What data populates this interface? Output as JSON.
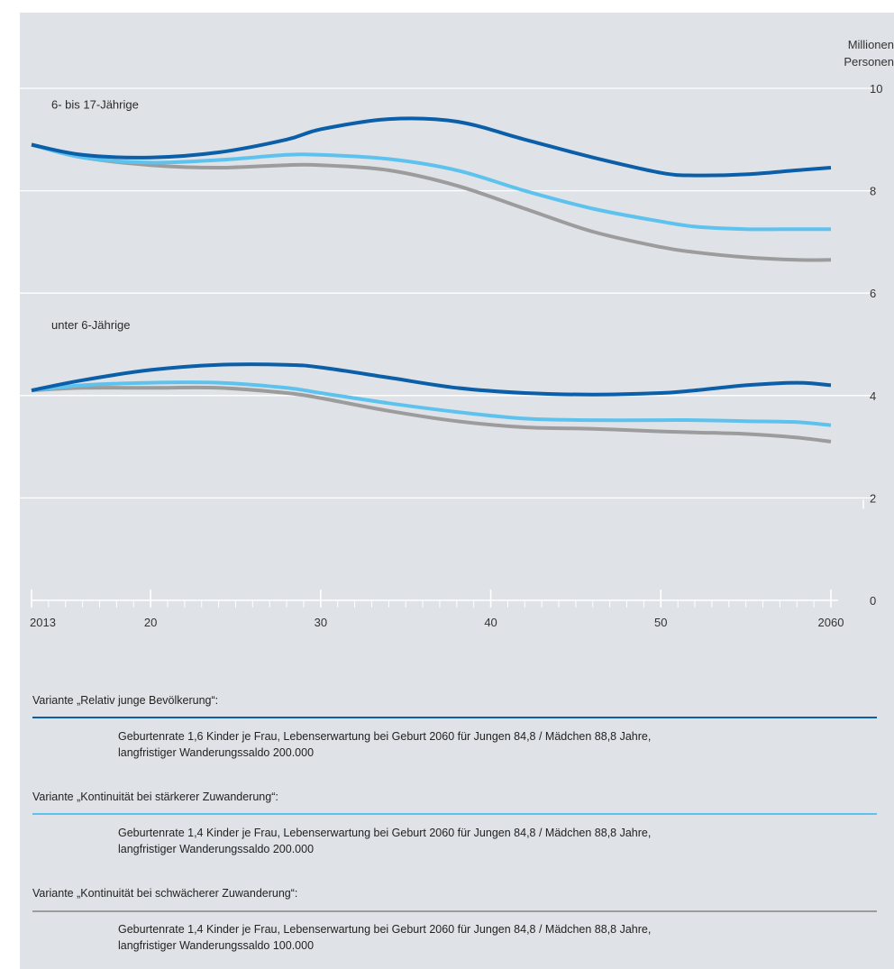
{
  "unit_label": [
    "Millionen",
    "Personen"
  ],
  "colors": {
    "variant_1": "#0b5ea8",
    "variant_2": "#5ec2ee",
    "variant_3": "#9c9c9c",
    "background": "#dfe3e7",
    "grid": "#ffffff"
  },
  "chart_data": {
    "type": "line",
    "xlim": [
      2013,
      2060
    ],
    "ylim": [
      0,
      10
    ],
    "y_ticks": [
      0,
      2,
      4,
      6,
      8,
      10
    ],
    "y_tick_labels": [
      "0",
      "2",
      "4",
      "6",
      "8",
      "10"
    ],
    "x_ticks": [
      2013,
      2020,
      2030,
      2040,
      2050,
      2060
    ],
    "x_tick_labels": [
      "2013",
      "20",
      "30",
      "40",
      "50",
      "2060"
    ],
    "grid": true,
    "groups": [
      {
        "label": "6- bis 17-Jährige",
        "label_at": [
          2013,
          9.6
        ],
        "x": [
          2013,
          2016,
          2020,
          2024,
          2028,
          2030,
          2034,
          2038,
          2042,
          2046,
          2050,
          2052,
          2055,
          2058,
          2060
        ],
        "series": [
          {
            "key": "variant_1",
            "values": [
              8.9,
              8.7,
              8.65,
              8.75,
              9.0,
              9.2,
              9.4,
              9.35,
              9.0,
              8.65,
              8.35,
              8.3,
              8.32,
              8.4,
              8.45
            ]
          },
          {
            "key": "variant_2",
            "values": [
              8.9,
              8.65,
              8.55,
              8.6,
              8.7,
              8.7,
              8.62,
              8.4,
              8.0,
              7.65,
              7.4,
              7.3,
              7.25,
              7.25,
              7.25
            ]
          },
          {
            "key": "variant_3",
            "values": [
              8.9,
              8.65,
              8.5,
              8.45,
              8.5,
              8.5,
              8.4,
              8.1,
              7.65,
              7.2,
              6.9,
              6.8,
              6.7,
              6.65,
              6.65
            ]
          }
        ]
      },
      {
        "label": "unter 6-Jährige",
        "label_at": [
          2013,
          5.3
        ],
        "x": [
          2013,
          2016,
          2020,
          2024,
          2028,
          2030,
          2034,
          2038,
          2042,
          2046,
          2050,
          2052,
          2055,
          2058,
          2060
        ],
        "series": [
          {
            "key": "variant_1",
            "values": [
              4.1,
              4.3,
              4.5,
              4.6,
              4.6,
              4.55,
              4.35,
              4.15,
              4.05,
              4.02,
              4.05,
              4.1,
              4.2,
              4.25,
              4.2
            ]
          },
          {
            "key": "variant_2",
            "values": [
              4.1,
              4.2,
              4.25,
              4.25,
              4.15,
              4.05,
              3.85,
              3.68,
              3.55,
              3.52,
              3.52,
              3.52,
              3.5,
              3.48,
              3.42
            ]
          },
          {
            "key": "variant_3",
            "values": [
              4.1,
              4.15,
              4.15,
              4.15,
              4.05,
              3.95,
              3.7,
              3.5,
              3.38,
              3.35,
              3.3,
              3.28,
              3.25,
              3.18,
              3.1
            ]
          }
        ]
      }
    ]
  },
  "legend": [
    {
      "key": "variant_1",
      "label": "Variante „Relativ junge Bevölkerung“:",
      "desc1": "Geburtenrate 1,6 Kinder je Frau, Lebenserwartung bei Geburt 2060 für Jungen 84,8 / Mädchen 88,8 Jahre,",
      "desc2": "langfristiger Wanderungssaldo 200.000"
    },
    {
      "key": "variant_2",
      "label": "Variante „Kontinuität bei stärkerer Zuwanderung“:",
      "desc1": "Geburtenrate 1,4 Kinder je Frau, Lebenserwartung bei Geburt 2060 für Jungen 84,8 / Mädchen 88,8 Jahre,",
      "desc2": "langfristiger Wanderungssaldo 200.000"
    },
    {
      "key": "variant_3",
      "label": "Variante „Kontinuität bei schwächerer Zuwanderung“:",
      "desc1": "Geburtenrate 1,4 Kinder je Frau, Lebenserwartung bei Geburt 2060 für Jungen 84,8 / Mädchen 88,8 Jahre,",
      "desc2": "langfristiger Wanderungssaldo 100.000"
    }
  ]
}
